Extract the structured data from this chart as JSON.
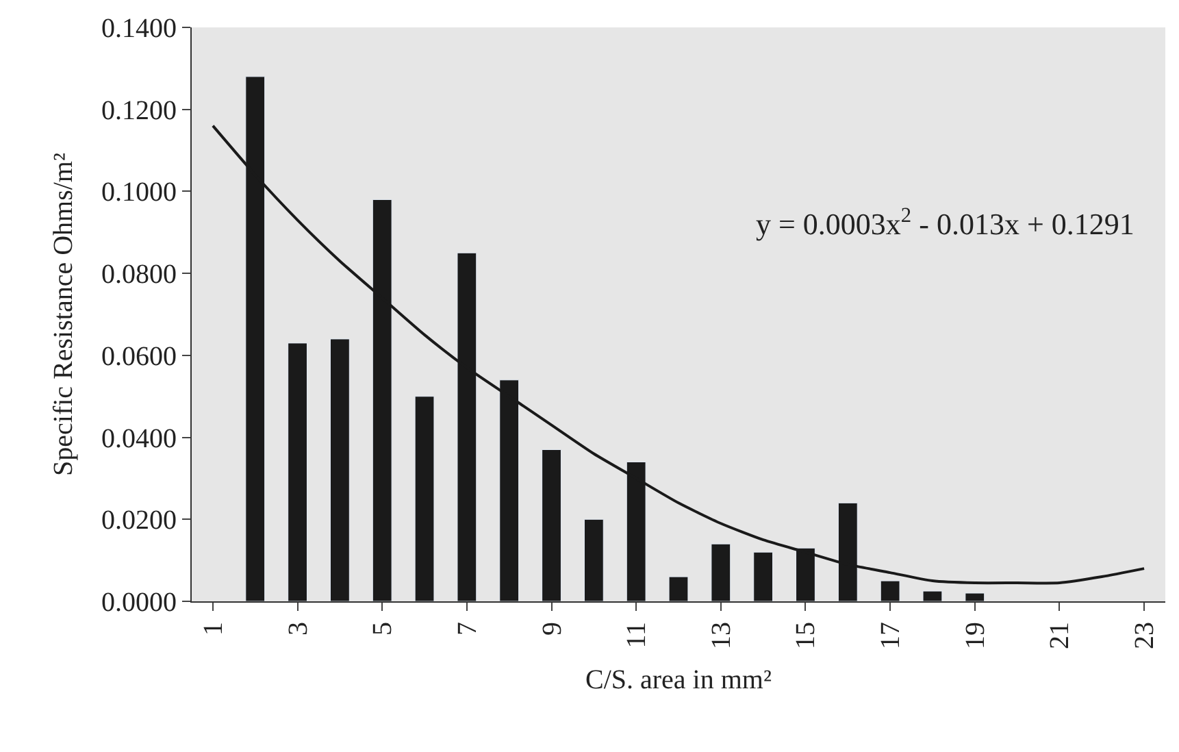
{
  "chart_data": {
    "type": "bar",
    "categories": [
      "1",
      null,
      "3",
      null,
      "5",
      null,
      "7",
      null,
      "9",
      null,
      "11",
      null,
      "13",
      null,
      "15",
      null,
      "17",
      null,
      "19",
      null,
      "21",
      null,
      "23"
    ],
    "series": [
      {
        "color": "#1a1a1a",
        "values": [
          null,
          0.128,
          0.063,
          0.064,
          0.098,
          0.05,
          0.085,
          0.054,
          0.037,
          0.02,
          0.034,
          0.006,
          0.014,
          0.012,
          0.013,
          0.024,
          0.005,
          0.0025,
          0.002,
          null,
          null,
          null,
          null
        ]
      },
      {
        "type": "line",
        "color": "#1a1a1a",
        "line_style": "solid",
        "values": [
          0.116,
          0.104,
          0.093,
          0.083,
          0.074,
          0.065,
          0.057,
          0.05,
          0.043,
          0.036,
          0.03,
          0.024,
          0.019,
          0.015,
          0.012,
          0.009,
          0.007,
          0.005,
          0.0045,
          0.0045,
          0.0045,
          0.006,
          0.008
        ]
      }
    ],
    "xlabel": "C/S. area in mm²",
    "ylabel": "Specific Resistance Ohms/m²",
    "annotations": [
      "y = 0.0003x$^{2}$ - 0.013x + 0.1291"
    ],
    "ylim": [
      0,
      0.14
    ],
    "yticks": [
      {
        "value": 0,
        "label": "0.0000"
      },
      {
        "value": 0.02,
        "label": "0.0200"
      },
      {
        "value": 0.04,
        "label": "0.0400"
      },
      {
        "value": 0.06,
        "label": "0.0600"
      },
      {
        "value": 0.08,
        "label": "0.0800"
      },
      {
        "value": 0.1,
        "label": "0.1000"
      },
      {
        "value": 0.12,
        "label": "0.1200"
      },
      {
        "value": 0.14,
        "label": "0.1400"
      }
    ],
    "grid": false,
    "marker": "none"
  }
}
